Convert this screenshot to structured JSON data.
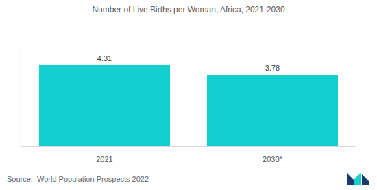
{
  "chart_data": {
    "type": "bar",
    "title": "Number of Live Births per Woman, Africa, 2021-2030",
    "categories": [
      "2021",
      "2030*"
    ],
    "values": [
      4.31,
      3.78
    ],
    "color": "#14cfd0",
    "ylim": [
      0,
      5
    ],
    "data_labels": true,
    "tick_labels": "x",
    "grid": false,
    "source": "Source:  World Population Prospects 2022"
  }
}
